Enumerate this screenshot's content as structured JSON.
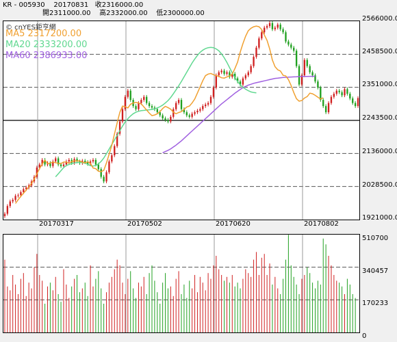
{
  "header": {
    "line1": "KR - 005930    20170831   收2316000.00",
    "line2": "開2311000.00    高2332000.00    低2300000.00"
  },
  "source_label": "© cnYES鉅亨網",
  "legend": [
    {
      "label": "MA5 2317200.00",
      "color": "#f0a030"
    },
    {
      "label": "MA20 2333200.00",
      "color": "#60d890"
    },
    {
      "label": "MA60 2386933.00",
      "color": "#a060e0"
    }
  ],
  "colors": {
    "up": "#d02020",
    "down": "#20a020",
    "black": "#000000"
  },
  "chart_data": [
    {
      "type": "candlestick",
      "title": "",
      "y_ticks": [
        "2566000.00",
        "2458500.00",
        "2351000.00",
        "2243500.00",
        "2136000.00",
        "2028500.00",
        "1921000.00"
      ],
      "ylim": [
        1921000,
        2566000
      ],
      "x_tick_labels": [
        "20170317",
        "20170502",
        "20170620",
        "20170802"
      ],
      "reference_line": 2243500,
      "close": [
        1940000,
        1965000,
        1980000,
        1985000,
        1998000,
        2000000,
        2010000,
        2020000,
        2025000,
        2032000,
        2045000,
        2060000,
        2090000,
        2100000,
        2115000,
        2100000,
        2105000,
        2095000,
        2110000,
        2120000,
        2100000,
        2095000,
        2100000,
        2110000,
        2115000,
        2105000,
        2118000,
        2110000,
        2105000,
        2112000,
        2108000,
        2102000,
        2110000,
        2115000,
        2100000,
        2085000,
        2060000,
        2045000,
        2075000,
        2110000,
        2130000,
        2160000,
        2200000,
        2240000,
        2280000,
        2320000,
        2340000,
        2310000,
        2290000,
        2280000,
        2300000,
        2310000,
        2320000,
        2300000,
        2290000,
        2285000,
        2280000,
        2270000,
        2260000,
        2250000,
        2245000,
        2240000,
        2255000,
        2280000,
        2300000,
        2310000,
        2280000,
        2270000,
        2260000,
        2255000,
        2265000,
        2270000,
        2275000,
        2280000,
        2290000,
        2295000,
        2300000,
        2320000,
        2350000,
        2390000,
        2400000,
        2405000,
        2395000,
        2400000,
        2385000,
        2395000,
        2380000,
        2370000,
        2360000,
        2380000,
        2390000,
        2400000,
        2420000,
        2450000,
        2480000,
        2510000,
        2530000,
        2545000,
        2550000,
        2560000,
        2540000,
        2545000,
        2555000,
        2540000,
        2530000,
        2500000,
        2490000,
        2480000,
        2470000,
        2420000,
        2360000,
        2390000,
        2440000,
        2420000,
        2400000,
        2390000,
        2370000,
        2350000,
        2310000,
        2290000,
        2270000,
        2300000,
        2320000,
        2330000,
        2340000,
        2335000,
        2325000,
        2345000,
        2330000,
        2315000,
        2300000,
        2290000,
        2316000
      ],
      "ma5": [
        null,
        null,
        null,
        null,
        1973600,
        1985600,
        1996600,
        2006600,
        2016600,
        2027400,
        2038400,
        2052600,
        2069600,
        2086600,
        2102000,
        2114000,
        2103000,
        2105000,
        2108000,
        2106000,
        2104000,
        2103000,
        2108000,
        2108000,
        2104000,
        2109600,
        2111600,
        2111600,
        2111600,
        2107800,
        2105400,
        2108800,
        2104200,
        2088600,
        2086400,
        2078000,
        2077000,
        2081000,
        2105000,
        2133200,
        2162000,
        2200000,
        2236000,
        2270000,
        2290000,
        2288000,
        2284000,
        2296000,
        2300000,
        2302000,
        2300000,
        2297000,
        2287000,
        2277000,
        2267000,
        2259000,
        2261000,
        2265000,
        2272000,
        2282000,
        2289000,
        2285000,
        2280000,
        2270000,
        2265000,
        2269000,
        2272000,
        2279000,
        2287000,
        2290000,
        2300000,
        2313000,
        2333000,
        2353000,
        2373000,
        2389000,
        2394000,
        2396000,
        2392000,
        2389000,
        2387000,
        2382000,
        2381000,
        2385000,
        2388000,
        2394000,
        2412000,
        2433000,
        2466000,
        2493000,
        2517000,
        2535000,
        2543000,
        2548000,
        2550000,
        2548000,
        2539000,
        2521000,
        2504000,
        2476000,
        2440000,
        2418000,
        2408000,
        2404000,
        2390000,
        2388000,
        2376000,
        2357000,
        2334000,
        2314000,
        2306000,
        2308000,
        2316000,
        2321000,
        2332000,
        2330000,
        2325000,
        2319000,
        2313000,
        2317200
      ],
      "ma20": [
        null,
        null,
        null,
        null,
        null,
        null,
        null,
        null,
        null,
        null,
        null,
        null,
        null,
        null,
        null,
        null,
        null,
        null,
        null,
        2060000,
        2070000,
        2080000,
        2090000,
        2097000,
        2100000,
        2103000,
        2105000,
        2106000,
        2107000,
        2106000,
        2104000,
        2101000,
        2096000,
        2095000,
        2097000,
        2102000,
        2110000,
        2121000,
        2135000,
        2150000,
        2165000,
        2180000,
        2195000,
        2210000,
        2225000,
        2238000,
        2249000,
        2258000,
        2265000,
        2270000,
        2273000,
        2275000,
        2276000,
        2277000,
        2278000,
        2279000,
        2281000,
        2284000,
        2288000,
        2293000,
        2300000,
        2308000,
        2318000,
        2330000,
        2343000,
        2356000,
        2370000,
        2385000,
        2400000,
        2415000,
        2430000,
        2443000,
        2455000,
        2465000,
        2472000,
        2477000,
        2480000,
        2481000,
        2480000,
        2476000,
        2470000,
        2460000,
        2447000,
        2432000,
        2415000,
        2398000,
        2383000,
        2370000,
        2359000,
        2351000,
        2345000,
        2340000,
        2336000,
        2334000,
        2333200
      ],
      "ma60": [
        null,
        null,
        null,
        null,
        null,
        null,
        null,
        null,
        null,
        null,
        null,
        null,
        null,
        null,
        null,
        null,
        null,
        null,
        null,
        null,
        null,
        null,
        null,
        null,
        null,
        null,
        null,
        null,
        null,
        null,
        null,
        null,
        null,
        null,
        null,
        null,
        null,
        null,
        null,
        null,
        null,
        null,
        null,
        null,
        null,
        null,
        null,
        null,
        null,
        null,
        null,
        null,
        null,
        null,
        null,
        null,
        null,
        null,
        null,
        2138000,
        2142000,
        2146000,
        2151000,
        2157000,
        2163000,
        2170000,
        2177000,
        2185000,
        2193000,
        2201000,
        2209000,
        2217000,
        2225000,
        2233000,
        2241000,
        2249000,
        2257000,
        2265000,
        2273000,
        2281000,
        2289000,
        2297000,
        2304000,
        2311000,
        2318000,
        2325000,
        2332000,
        2338000,
        2344000,
        2350000,
        2354000,
        2358000,
        2361000,
        2364000,
        2366000,
        2368000,
        2370000,
        2372000,
        2374000,
        2376000,
        2378000,
        2380000,
        2381000,
        2382000,
        2383000,
        2383500,
        2384000,
        2384500,
        2385000,
        2385500,
        2386000,
        2386200,
        2386400,
        2386600,
        2386700,
        2386800,
        2386933
      ]
    },
    {
      "type": "bar",
      "title": "",
      "y_ticks": [
        "510700",
        "340457",
        "170233",
        "0"
      ],
      "ylim": [
        0,
        510700
      ],
      "values": [
        380000,
        240000,
        220000,
        300000,
        250000,
        200000,
        280000,
        310000,
        190000,
        260000,
        230000,
        340000,
        410000,
        300000,
        270000,
        150000,
        240000,
        260000,
        220000,
        290000,
        200000,
        160000,
        330000,
        250000,
        180000,
        240000,
        280000,
        300000,
        210000,
        230000,
        260000,
        190000,
        350000,
        240000,
        280000,
        320000,
        230000,
        150000,
        210000,
        260000,
        290000,
        330000,
        380000,
        350000,
        260000,
        200000,
        280000,
        320000,
        230000,
        180000,
        260000,
        240000,
        290000,
        200000,
        310000,
        350000,
        270000,
        210000,
        150000,
        260000,
        310000,
        230000,
        240000,
        190000,
        280000,
        320000,
        200000,
        250000,
        180000,
        270000,
        230000,
        300000,
        210000,
        290000,
        260000,
        220000,
        310000,
        280000,
        350000,
        400000,
        330000,
        300000,
        270000,
        290000,
        260000,
        300000,
        240000,
        260000,
        230000,
        280000,
        330000,
        310000,
        290000,
        380000,
        420000,
        300000,
        390000,
        410000,
        300000,
        360000,
        250000,
        290000,
        230000,
        200000,
        280000,
        380000,
        510000,
        350000,
        290000,
        250000,
        200000,
        280000,
        300000,
        340000,
        310000,
        260000,
        230000,
        270000,
        250000,
        490000,
        460000,
        400000,
        350000,
        300000,
        270000,
        260000,
        240000,
        200000,
        280000,
        250000,
        200000,
        180000
      ]
    }
  ]
}
